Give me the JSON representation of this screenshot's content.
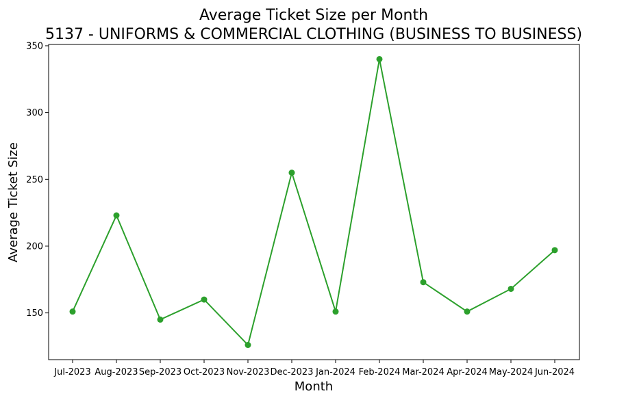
{
  "chart_data": {
    "type": "line",
    "title": "Average Ticket Size per Month",
    "subtitle": "5137 - UNIFORMS & COMMERCIAL CLOTHING (BUSINESS TO BUSINESS)",
    "xlabel": "Month",
    "ylabel": "Average Ticket Size",
    "categories": [
      "Jul-2023",
      "Aug-2023",
      "Sep-2023",
      "Oct-2023",
      "Nov-2023",
      "Dec-2023",
      "Jan-2024",
      "Feb-2024",
      "Mar-2024",
      "Apr-2024",
      "May-2024",
      "Jun-2024"
    ],
    "series": [
      {
        "values": [
          151,
          223,
          145,
          160,
          126,
          255,
          151,
          340,
          173,
          151,
          168,
          197
        ],
        "color": "#2ca02c"
      }
    ],
    "ylim": [
      115,
      351
    ],
    "yticks": [
      150,
      200,
      250,
      300,
      350
    ],
    "grid": false,
    "legend": "none",
    "markers": "circle"
  }
}
